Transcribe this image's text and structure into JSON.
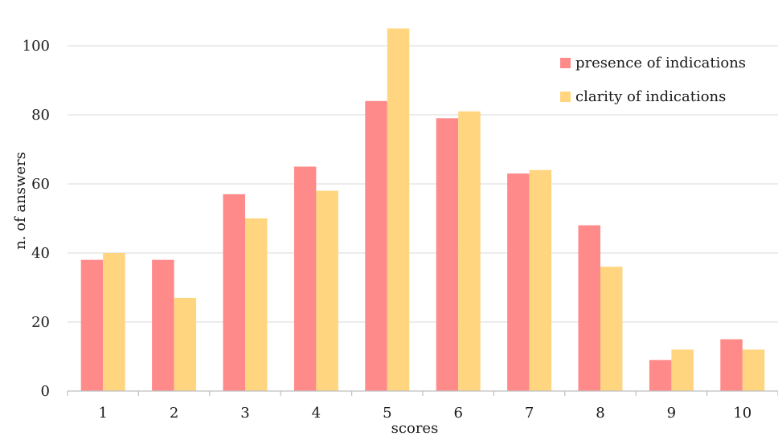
{
  "chart_data": {
    "type": "bar",
    "title": "",
    "xlabel": "scores",
    "ylabel": "n. of answers",
    "categories": [
      "1",
      "2",
      "3",
      "4",
      "5",
      "6",
      "7",
      "8",
      "9",
      "10"
    ],
    "series": [
      {
        "name": "presence of indications",
        "color": "#FF8A8A",
        "values": [
          38,
          38,
          57,
          65,
          84,
          79,
          63,
          48,
          9,
          15
        ]
      },
      {
        "name": "clarity of indications",
        "color": "#FFD580",
        "values": [
          40,
          27,
          50,
          58,
          105,
          81,
          64,
          36,
          12,
          12
        ]
      }
    ],
    "ylim": [
      0,
      110
    ],
    "yticks": [
      0,
      20,
      40,
      60,
      80,
      100
    ],
    "grid": true,
    "legend_position": "top-right"
  }
}
